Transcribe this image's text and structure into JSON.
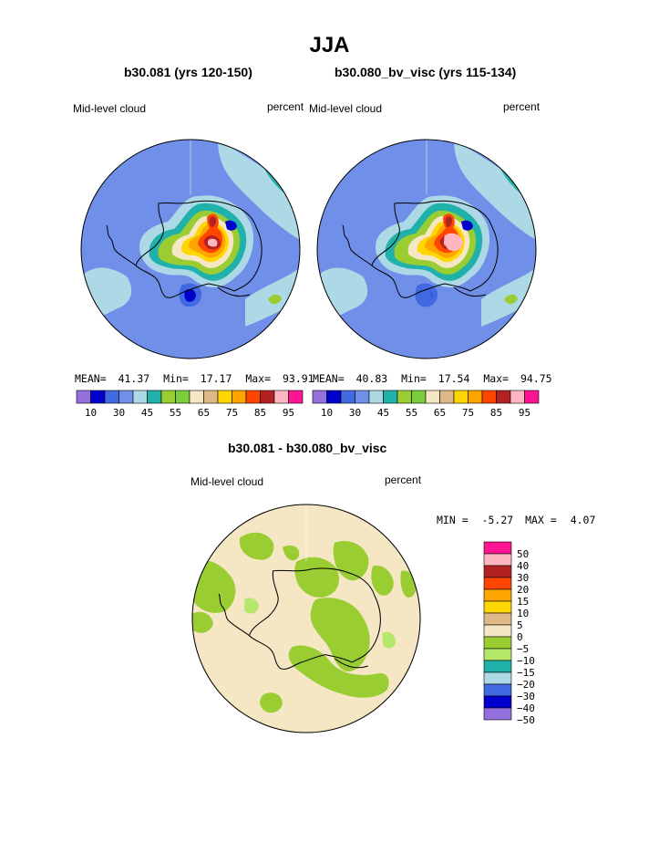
{
  "title": "JJA",
  "panels": [
    {
      "case": "b30.081 (yrs 120-150)",
      "variable": "Mid-level cloud",
      "units": "percent",
      "stats": {
        "mean_label": "MEAN=",
        "mean": "41.37",
        "min_label": "Min=",
        "min": "17.17",
        "max_label": "Max=",
        "max": "93.91"
      }
    },
    {
      "case": "b30.080_bv_visc (yrs 115-134)",
      "variable": "Mid-level cloud",
      "units": "percent",
      "stats": {
        "mean_label": "MEAN=",
        "mean": "40.83",
        "min_label": "Min=",
        "min": "17.54",
        "max_label": "Max=",
        "max": "94.75"
      }
    }
  ],
  "colorbar": {
    "colors": [
      "#9370db",
      "#0000cd",
      "#4169e1",
      "#6f8fe8",
      "#add8e6",
      "#20b2aa",
      "#9acd32",
      "#7ccd3c",
      "#f5e6c4",
      "#deb887",
      "#ffd700",
      "#ffa500",
      "#ff4500",
      "#b22222",
      "#ffb6c1",
      "#ff1493"
    ],
    "labels": [
      "10",
      "30",
      "45",
      "55",
      "65",
      "75",
      "85",
      "95"
    ]
  },
  "difference": {
    "title": "b30.081 - b30.080_bv_visc",
    "variable": "Mid-level cloud",
    "units": "percent",
    "stats": {
      "min_label": "MIN =",
      "min": "-5.27",
      "max_label": "MAX =",
      "max": "4.07"
    },
    "colorbar": {
      "colors": [
        "#ff1493",
        "#ffb6c1",
        "#b22222",
        "#ff4500",
        "#ffa500",
        "#ffd700",
        "#deb887",
        "#f5e6c4",
        "#9acd32",
        "#b5e76a",
        "#20b2aa",
        "#add8e6",
        "#4169e1",
        "#0000cd",
        "#9370db"
      ],
      "labels": [
        "50",
        "40",
        "30",
        "20",
        "15",
        "10",
        "5",
        "0",
        "−5",
        "−10",
        "−15",
        "−20",
        "−30",
        "−40",
        "−50"
      ]
    }
  }
}
